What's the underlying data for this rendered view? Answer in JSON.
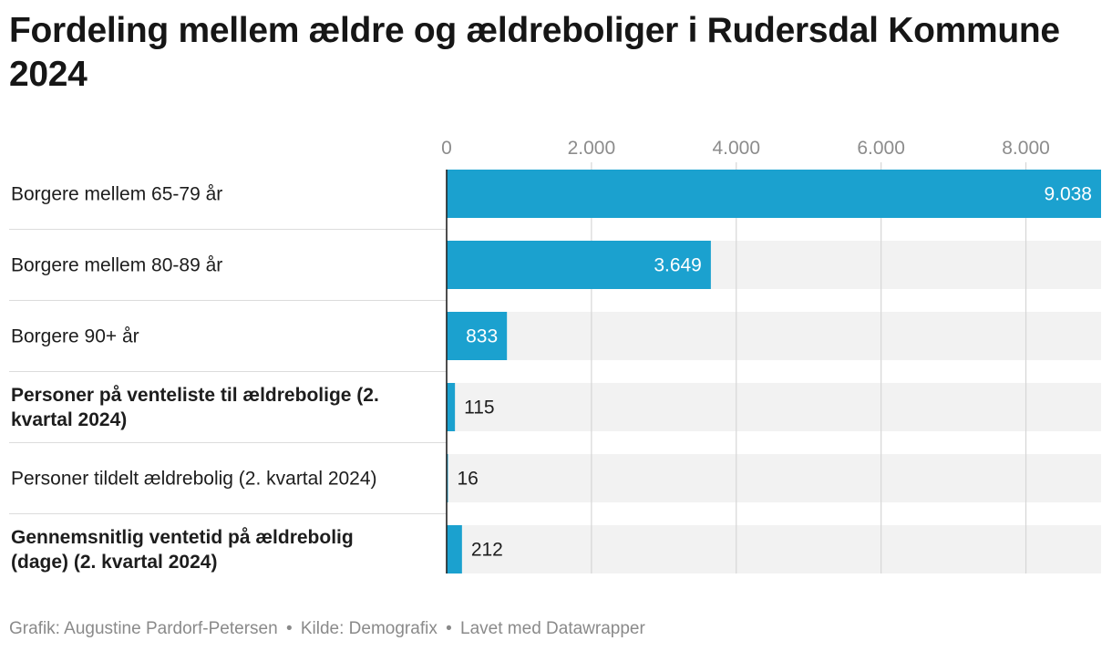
{
  "chart_data": {
    "type": "bar",
    "orientation": "horizontal",
    "title": "Fordeling mellem ældre og ældreboliger i Rudersdal Kommune 2024",
    "categories": [
      "Borgere mellem 65-79 år",
      "Borgere mellem 80-89 år",
      "Borgere 90+ år",
      "Personer på venteliste til ældrebolige (2. kvartal 2024)",
      "Personer tildelt ældrebolig (2. kvartal 2024)",
      "Gennemsnitlig ventetid på ældrebolig (dage) (2. kvartal 2024)"
    ],
    "category_display": [
      [
        "Borgere mellem 65-79 år"
      ],
      [
        "Borgere mellem 80-89 år"
      ],
      [
        "Borgere 90+ år"
      ],
      [
        "Personer på venteliste til ældrebolige (2.",
        "kvartal 2024)"
      ],
      [
        "Personer tildelt ældrebolig (2. kvartal 2024)"
      ],
      [
        "Gennemsnitlig ventetid på ældrebolig",
        "(dage) (2. kvartal 2024)"
      ]
    ],
    "bold_categories": [
      false,
      false,
      false,
      true,
      false,
      true
    ],
    "values": [
      9038,
      3649,
      833,
      115,
      16,
      212
    ],
    "value_labels": [
      "9.038",
      "3.649",
      "833",
      "115",
      "16",
      "212"
    ],
    "ticks": [
      0,
      2000,
      4000,
      6000,
      8000
    ],
    "tick_labels": [
      "0",
      "2.000",
      "4.000",
      "6.000",
      "8.000"
    ],
    "xlim": [
      0,
      9038
    ],
    "grid": true,
    "bar_color": "#1ba1cf",
    "track_color": "#f2f2f2",
    "grid_color": "#d6d6d6"
  },
  "footer": {
    "credit": "Grafik: Augustine Pardorf-Petersen",
    "source": "Kilde: Demografix",
    "tool": "Lavet med Datawrapper",
    "separator": "•"
  }
}
